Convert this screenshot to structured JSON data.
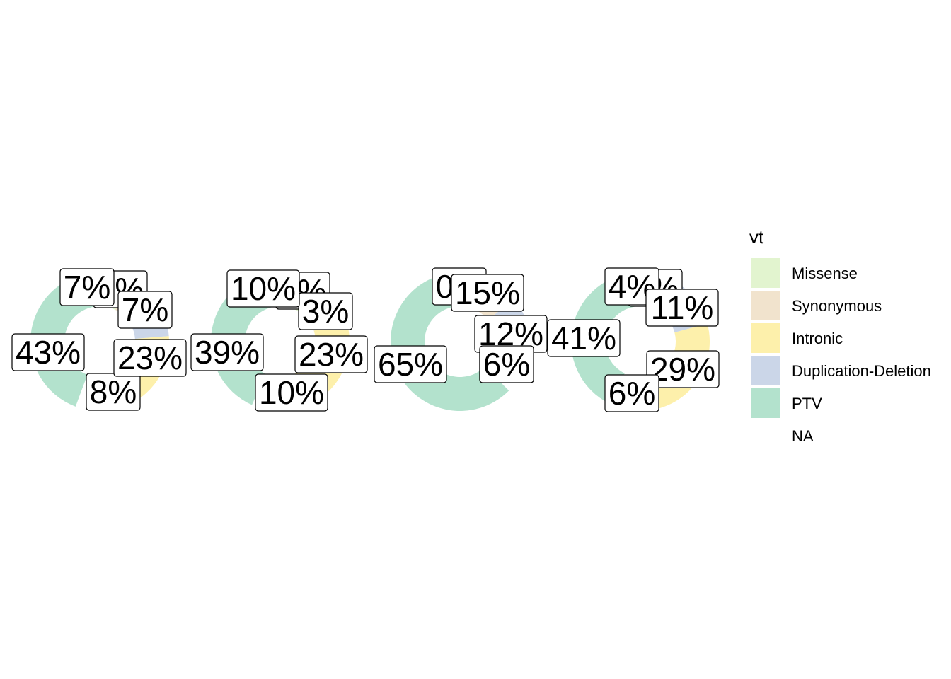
{
  "chart_data": {
    "type": "pie",
    "variant": "donut",
    "legend": {
      "title": "vt",
      "placement": "right",
      "entries": [
        {
          "label": "Missense",
          "color": "#e2f4cf"
        },
        {
          "label": "Synonymous",
          "color": "#f1e3cd"
        },
        {
          "label": "Intronic",
          "color": "#fdf0ab"
        },
        {
          "label": "Duplication-Deletion",
          "color": "#cbd6e8"
        },
        {
          "label": "PTV",
          "color": "#b3e2cd"
        },
        {
          "label": "NA",
          "color": "#ffffff"
        }
      ]
    },
    "panels": [
      {
        "slices": [
          {
            "category": "PTV",
            "value": 43,
            "label": "43%"
          },
          {
            "category": "Missense",
            "value": 7,
            "label": "7%"
          },
          {
            "category": "Synonymous",
            "value": 9,
            "label": "9%"
          },
          {
            "category": "Duplication-Deletion",
            "value": 7,
            "label": "7%"
          },
          {
            "category": "Intronic",
            "value": 23,
            "label": "23%"
          },
          {
            "category": "NA",
            "value": 8,
            "label": "8%"
          }
        ]
      },
      {
        "slices": [
          {
            "category": "PTV",
            "value": 39,
            "label": "39%"
          },
          {
            "category": "Missense",
            "value": 10,
            "label": "10%"
          },
          {
            "category": "Synonymous",
            "value": 5,
            "label": "5%"
          },
          {
            "category": "Duplication-Deletion",
            "value": 3,
            "label": "3%"
          },
          {
            "category": "Intronic",
            "value": 23,
            "label": "23%"
          },
          {
            "category": "NA",
            "value": 10,
            "label": "10%"
          }
        ]
      },
      {
        "slices": [
          {
            "category": "PTV",
            "value": 65,
            "label": "65%"
          },
          {
            "category": "Missense",
            "value": 0,
            "label": "0%"
          },
          {
            "category": "Synonymous",
            "value": 15,
            "label": "15%"
          },
          {
            "category": "Duplication-Deletion",
            "value": 12,
            "label": "12%"
          },
          {
            "category": "Intronic",
            "value": 6,
            "label": "6%"
          },
          {
            "category": "NA",
            "value": 6,
            "label": "6%"
          }
        ]
      },
      {
        "slices": [
          {
            "category": "PTV",
            "value": 41,
            "label": "41%"
          },
          {
            "category": "Missense",
            "value": 4,
            "label": "4%"
          },
          {
            "category": "Synonymous",
            "value": 5,
            "label": "5%"
          },
          {
            "category": "Duplication-Deletion",
            "value": 11,
            "label": "11%"
          },
          {
            "category": "Intronic",
            "value": 29,
            "label": "29%"
          },
          {
            "category": "NA",
            "value": 6,
            "label": "6%"
          }
        ]
      }
    ],
    "grid": false
  }
}
